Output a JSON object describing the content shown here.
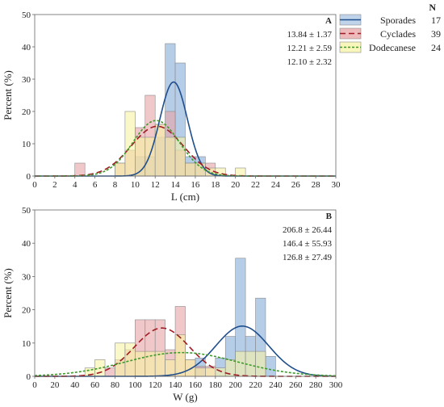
{
  "legend": {
    "header": "N",
    "entries": [
      {
        "name": "Sporades",
        "n": "17",
        "fill": "#a9c4e4",
        "stroke": "#1f4e8c",
        "dash": "none"
      },
      {
        "name": "Cyclades",
        "n": "39",
        "fill": "#e8a3a6",
        "stroke": "#a01c24",
        "dash": "7,4"
      },
      {
        "name": "Dodecanese",
        "n": "24",
        "fill": "#f6f3a3",
        "stroke": "#3c9a2a",
        "dash": "3,2"
      }
    ]
  },
  "chart_data": [
    {
      "type": "bar",
      "panel_label": "A",
      "xlabel": "L (cm)",
      "ylabel": "Percent (%)",
      "xlim": [
        0,
        30
      ],
      "ylim": [
        0,
        50
      ],
      "xticks": [
        0,
        2,
        4,
        6,
        8,
        10,
        12,
        14,
        16,
        18,
        20,
        22,
        24,
        26,
        28,
        30
      ],
      "yticks": [
        0,
        10,
        20,
        30,
        40,
        50
      ],
      "bin_width": 1,
      "annotations": [
        "13.84 ± 1.37",
        "12.21 ± 2.59",
        "12.10 ± 2.32"
      ],
      "series": [
        {
          "name": "Sporades",
          "mean": 13.84,
          "sd": 1.37,
          "bins": [
            {
              "x": 10.5,
              "y": 6
            },
            {
              "x": 11.5,
              "y": 6
            },
            {
              "x": 12.5,
              "y": 12
            },
            {
              "x": 13.5,
              "y": 41
            },
            {
              "x": 14.5,
              "y": 35
            },
            {
              "x": 15.5,
              "y": 6
            },
            {
              "x": 16.5,
              "y": 6
            }
          ]
        },
        {
          "name": "Cyclades",
          "mean": 12.21,
          "sd": 2.59,
          "bins": [
            {
              "x": 4.5,
              "y": 4
            },
            {
              "x": 8.5,
              "y": 4
            },
            {
              "x": 9.5,
              "y": 8
            },
            {
              "x": 10.5,
              "y": 15
            },
            {
              "x": 11.5,
              "y": 25
            },
            {
              "x": 12.5,
              "y": 16
            },
            {
              "x": 13.5,
              "y": 20
            },
            {
              "x": 14.5,
              "y": 8
            },
            {
              "x": 15.5,
              "y": 4
            },
            {
              "x": 16.5,
              "y": 4
            },
            {
              "x": 17.5,
              "y": 4
            }
          ]
        },
        {
          "name": "Dodecanese",
          "mean": 12.1,
          "sd": 2.32,
          "bins": [
            {
              "x": 8.5,
              "y": 4
            },
            {
              "x": 9.5,
              "y": 20
            },
            {
              "x": 10.5,
              "y": 12
            },
            {
              "x": 11.5,
              "y": 12
            },
            {
              "x": 12.5,
              "y": 16
            },
            {
              "x": 13.5,
              "y": 12
            },
            {
              "x": 14.5,
              "y": 12
            },
            {
              "x": 15.5,
              "y": 4
            },
            {
              "x": 16.5,
              "y": 4
            },
            {
              "x": 17.5,
              "y": 2.5
            },
            {
              "x": 18.5,
              "y": 2.5
            },
            {
              "x": 20.5,
              "y": 2.5
            }
          ]
        }
      ]
    },
    {
      "type": "bar",
      "panel_label": "B",
      "xlabel": "W (g)",
      "ylabel": "Percent (%)",
      "xlim": [
        0,
        300
      ],
      "ylim": [
        0,
        50
      ],
      "xticks": [
        0,
        20,
        40,
        60,
        80,
        100,
        120,
        140,
        160,
        180,
        200,
        220,
        240,
        260,
        280,
        300
      ],
      "yticks": [
        0,
        10,
        20,
        30,
        40,
        50
      ],
      "bin_width": 10,
      "annotations": [
        "206.8 ± 26.44",
        "146.4 ± 55.93",
        "126.8 ± 27.49"
      ],
      "series": [
        {
          "name": "Sporades",
          "mean": 206.8,
          "sd": 26.44,
          "bins": [
            {
              "x": 165,
              "y": 5.5
            },
            {
              "x": 185,
              "y": 5.5
            },
            {
              "x": 195,
              "y": 12
            },
            {
              "x": 205,
              "y": 35.5
            },
            {
              "x": 215,
              "y": 12
            },
            {
              "x": 225,
              "y": 23.5
            },
            {
              "x": 235,
              "y": 6
            }
          ]
        },
        {
          "name": "Cyclades",
          "mean": 126.8,
          "sd": 27.49,
          "bins": [
            {
              "x": 75,
              "y": 2.5
            },
            {
              "x": 85,
              "y": 5
            },
            {
              "x": 95,
              "y": 8
            },
            {
              "x": 105,
              "y": 17
            },
            {
              "x": 115,
              "y": 17
            },
            {
              "x": 125,
              "y": 17
            },
            {
              "x": 135,
              "y": 8
            },
            {
              "x": 145,
              "y": 21
            },
            {
              "x": 155,
              "y": 5
            },
            {
              "x": 165,
              "y": 3
            },
            {
              "x": 175,
              "y": 3
            }
          ]
        },
        {
          "name": "Dodecanese",
          "mean": 146.4,
          "sd": 55.93,
          "bins": [
            {
              "x": 55,
              "y": 2.5
            },
            {
              "x": 65,
              "y": 5
            },
            {
              "x": 85,
              "y": 10
            },
            {
              "x": 95,
              "y": 10
            },
            {
              "x": 105,
              "y": 7.5
            },
            {
              "x": 115,
              "y": 7.5
            },
            {
              "x": 125,
              "y": 7.5
            },
            {
              "x": 135,
              "y": 5
            },
            {
              "x": 145,
              "y": 12.5
            },
            {
              "x": 155,
              "y": 5
            },
            {
              "x": 165,
              "y": 2.5
            },
            {
              "x": 175,
              "y": 2.5
            },
            {
              "x": 185,
              "y": 2.5
            },
            {
              "x": 195,
              "y": 5
            },
            {
              "x": 205,
              "y": 7.5
            },
            {
              "x": 215,
              "y": 7.5
            },
            {
              "x": 225,
              "y": 7.5
            }
          ]
        }
      ]
    }
  ]
}
